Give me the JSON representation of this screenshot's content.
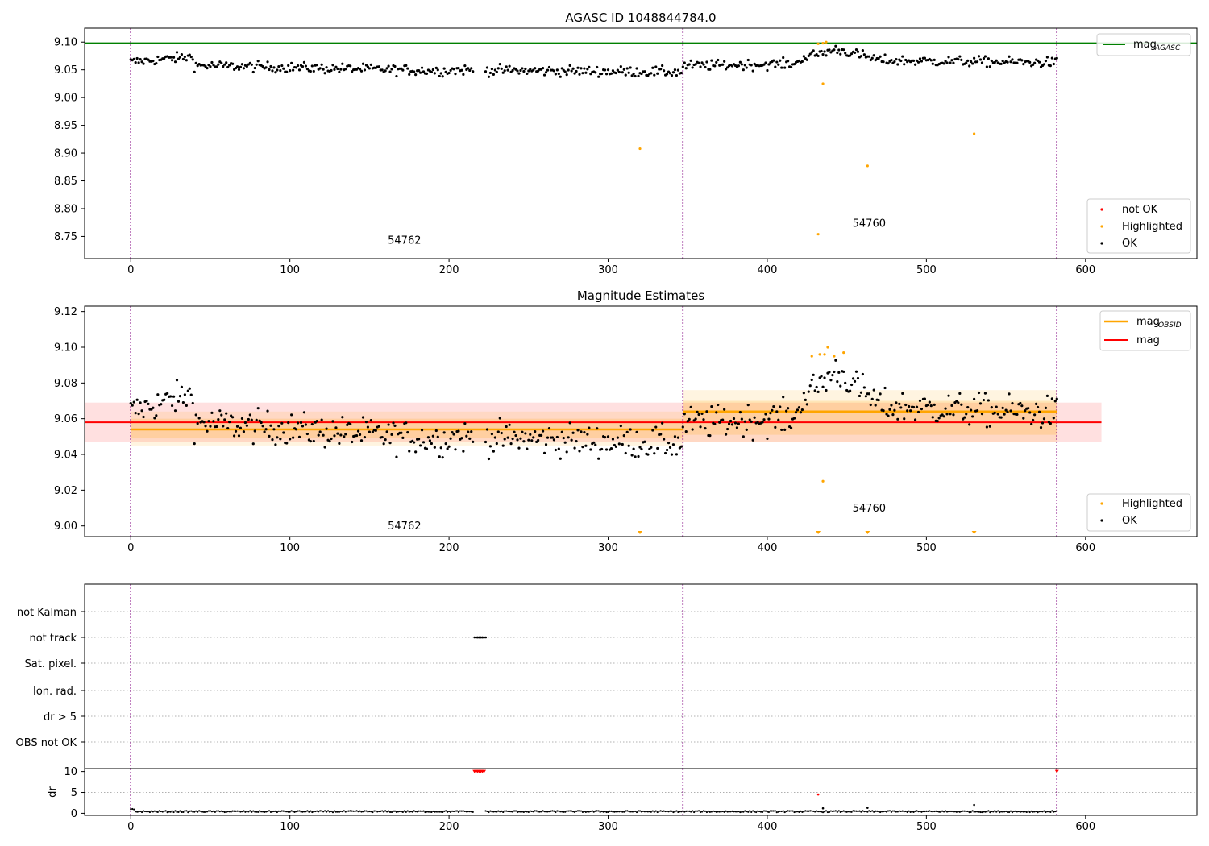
{
  "chart_data": [
    {
      "type": "scatter",
      "title": "AGASC ID 1048844784.0",
      "xlim": [
        -29,
        670
      ],
      "ylim": [
        8.71,
        9.125
      ],
      "xticks": [
        0,
        100,
        200,
        300,
        400,
        500,
        600
      ],
      "yticks": [
        8.75,
        8.8,
        8.85,
        8.9,
        8.95,
        9.0,
        9.05,
        9.1
      ],
      "ytick_labels": [
        "8.75",
        "8.80",
        "8.85",
        "8.90",
        "8.95",
        "9.00",
        "9.05",
        "9.10"
      ],
      "obsid_boundaries": [
        0,
        347,
        582
      ],
      "obsid_labels": [
        {
          "text": "54762",
          "x": 172,
          "y": 8.737
        },
        {
          "text": "54760",
          "x": 464,
          "y": 8.767
        }
      ],
      "mag_agasc": 9.098,
      "ok_series": {
        "name": "OK",
        "color": "#000000"
      },
      "highlighted_points": [
        [
          320,
          8.908
        ],
        [
          432,
          8.754
        ],
        [
          435,
          9.025
        ],
        [
          463,
          8.877
        ],
        [
          530,
          8.935
        ],
        [
          432,
          9.097
        ],
        [
          435,
          9.098
        ],
        [
          437,
          9.1
        ]
      ],
      "not_ok_points": [],
      "legend_lines": [
        {
          "label_main": "mag",
          "label_sub": "AGASC",
          "color": "#008000"
        }
      ],
      "legend_points": [
        {
          "label": "not OK",
          "color": "#ff0000"
        },
        {
          "label": "Highlighted",
          "color": "#ffa500"
        },
        {
          "label": "OK",
          "color": "#000000"
        }
      ]
    },
    {
      "type": "scatter",
      "title": "Magnitude Estimates",
      "xlim": [
        -29,
        670
      ],
      "ylim": [
        8.994,
        9.123
      ],
      "xticks": [
        0,
        100,
        200,
        300,
        400,
        500,
        600
      ],
      "yticks": [
        9.0,
        9.02,
        9.04,
        9.06,
        9.08,
        9.1,
        9.12
      ],
      "ytick_labels": [
        "9.00",
        "9.02",
        "9.04",
        "9.06",
        "9.08",
        "9.10",
        "9.12"
      ],
      "obsid_boundaries": [
        0,
        347,
        582
      ],
      "obsid_labels": [
        {
          "text": "54762",
          "x": 172,
          "y": 8.998
        },
        {
          "text": "54760",
          "x": 464,
          "y": 9.008
        }
      ],
      "mag": {
        "value": 9.058,
        "sigma_band": [
          9.047,
          9.069
        ],
        "x_range": [
          -29,
          610
        ]
      },
      "mag_obsid": [
        {
          "x_range": [
            0,
            347
          ],
          "value": 9.054,
          "band_inner": [
            9.049,
            9.06
          ],
          "band_outer": [
            9.045,
            9.064
          ]
        },
        {
          "x_range": [
            347,
            582
          ],
          "value": 9.064,
          "band_inner": [
            9.051,
            9.07
          ],
          "band_outer": [
            9.047,
            9.076
          ]
        }
      ],
      "highlighted_points": [
        [
          435,
          9.025
        ],
        [
          428,
          9.095
        ],
        [
          433,
          9.096
        ],
        [
          436,
          9.096
        ],
        [
          438,
          9.1
        ],
        [
          442,
          9.095
        ],
        [
          448,
          9.097
        ]
      ],
      "offscale_markers_x": [
        320,
        432,
        463,
        530
      ],
      "legend_lines": [
        {
          "label_main": "mag",
          "label_sub": "OBSID",
          "color": "#ffa500"
        },
        {
          "label_main": "mag",
          "label_sub": "",
          "color": "#ff0000"
        }
      ],
      "legend_points": [
        {
          "label": "Highlighted",
          "color": "#ffa500"
        },
        {
          "label": "OK",
          "color": "#000000"
        }
      ]
    },
    {
      "type": "scatter",
      "title": "",
      "xlim": [
        -29,
        670
      ],
      "flag_categories": [
        "not Kalman",
        "not track",
        "Sat. pixel.",
        "Ion. rad.",
        "dr > 5",
        "OBS not OK"
      ],
      "flags": {
        "not track": {
          "x_range": [
            216,
            222
          ]
        }
      },
      "obsid_boundaries": [
        0,
        347,
        582
      ]
    },
    {
      "type": "scatter",
      "xlim": [
        -29,
        670
      ],
      "ylim": [
        -0.5,
        10.7
      ],
      "ylabel": "dr",
      "yticks": [
        0,
        5,
        10
      ],
      "ytick_labels": [
        "0",
        "5",
        "10"
      ],
      "xticks": [
        0,
        100,
        200,
        300,
        400,
        500,
        600
      ],
      "clipped_points_x": [
        216,
        217,
        218,
        219,
        220,
        221,
        222,
        582
      ],
      "outliers": [
        [
          432,
          4.5
        ],
        [
          435,
          1.2
        ],
        [
          463,
          1.3
        ],
        [
          530,
          2.0
        ]
      ],
      "obsid_boundaries": [
        0,
        347,
        582
      ]
    }
  ]
}
